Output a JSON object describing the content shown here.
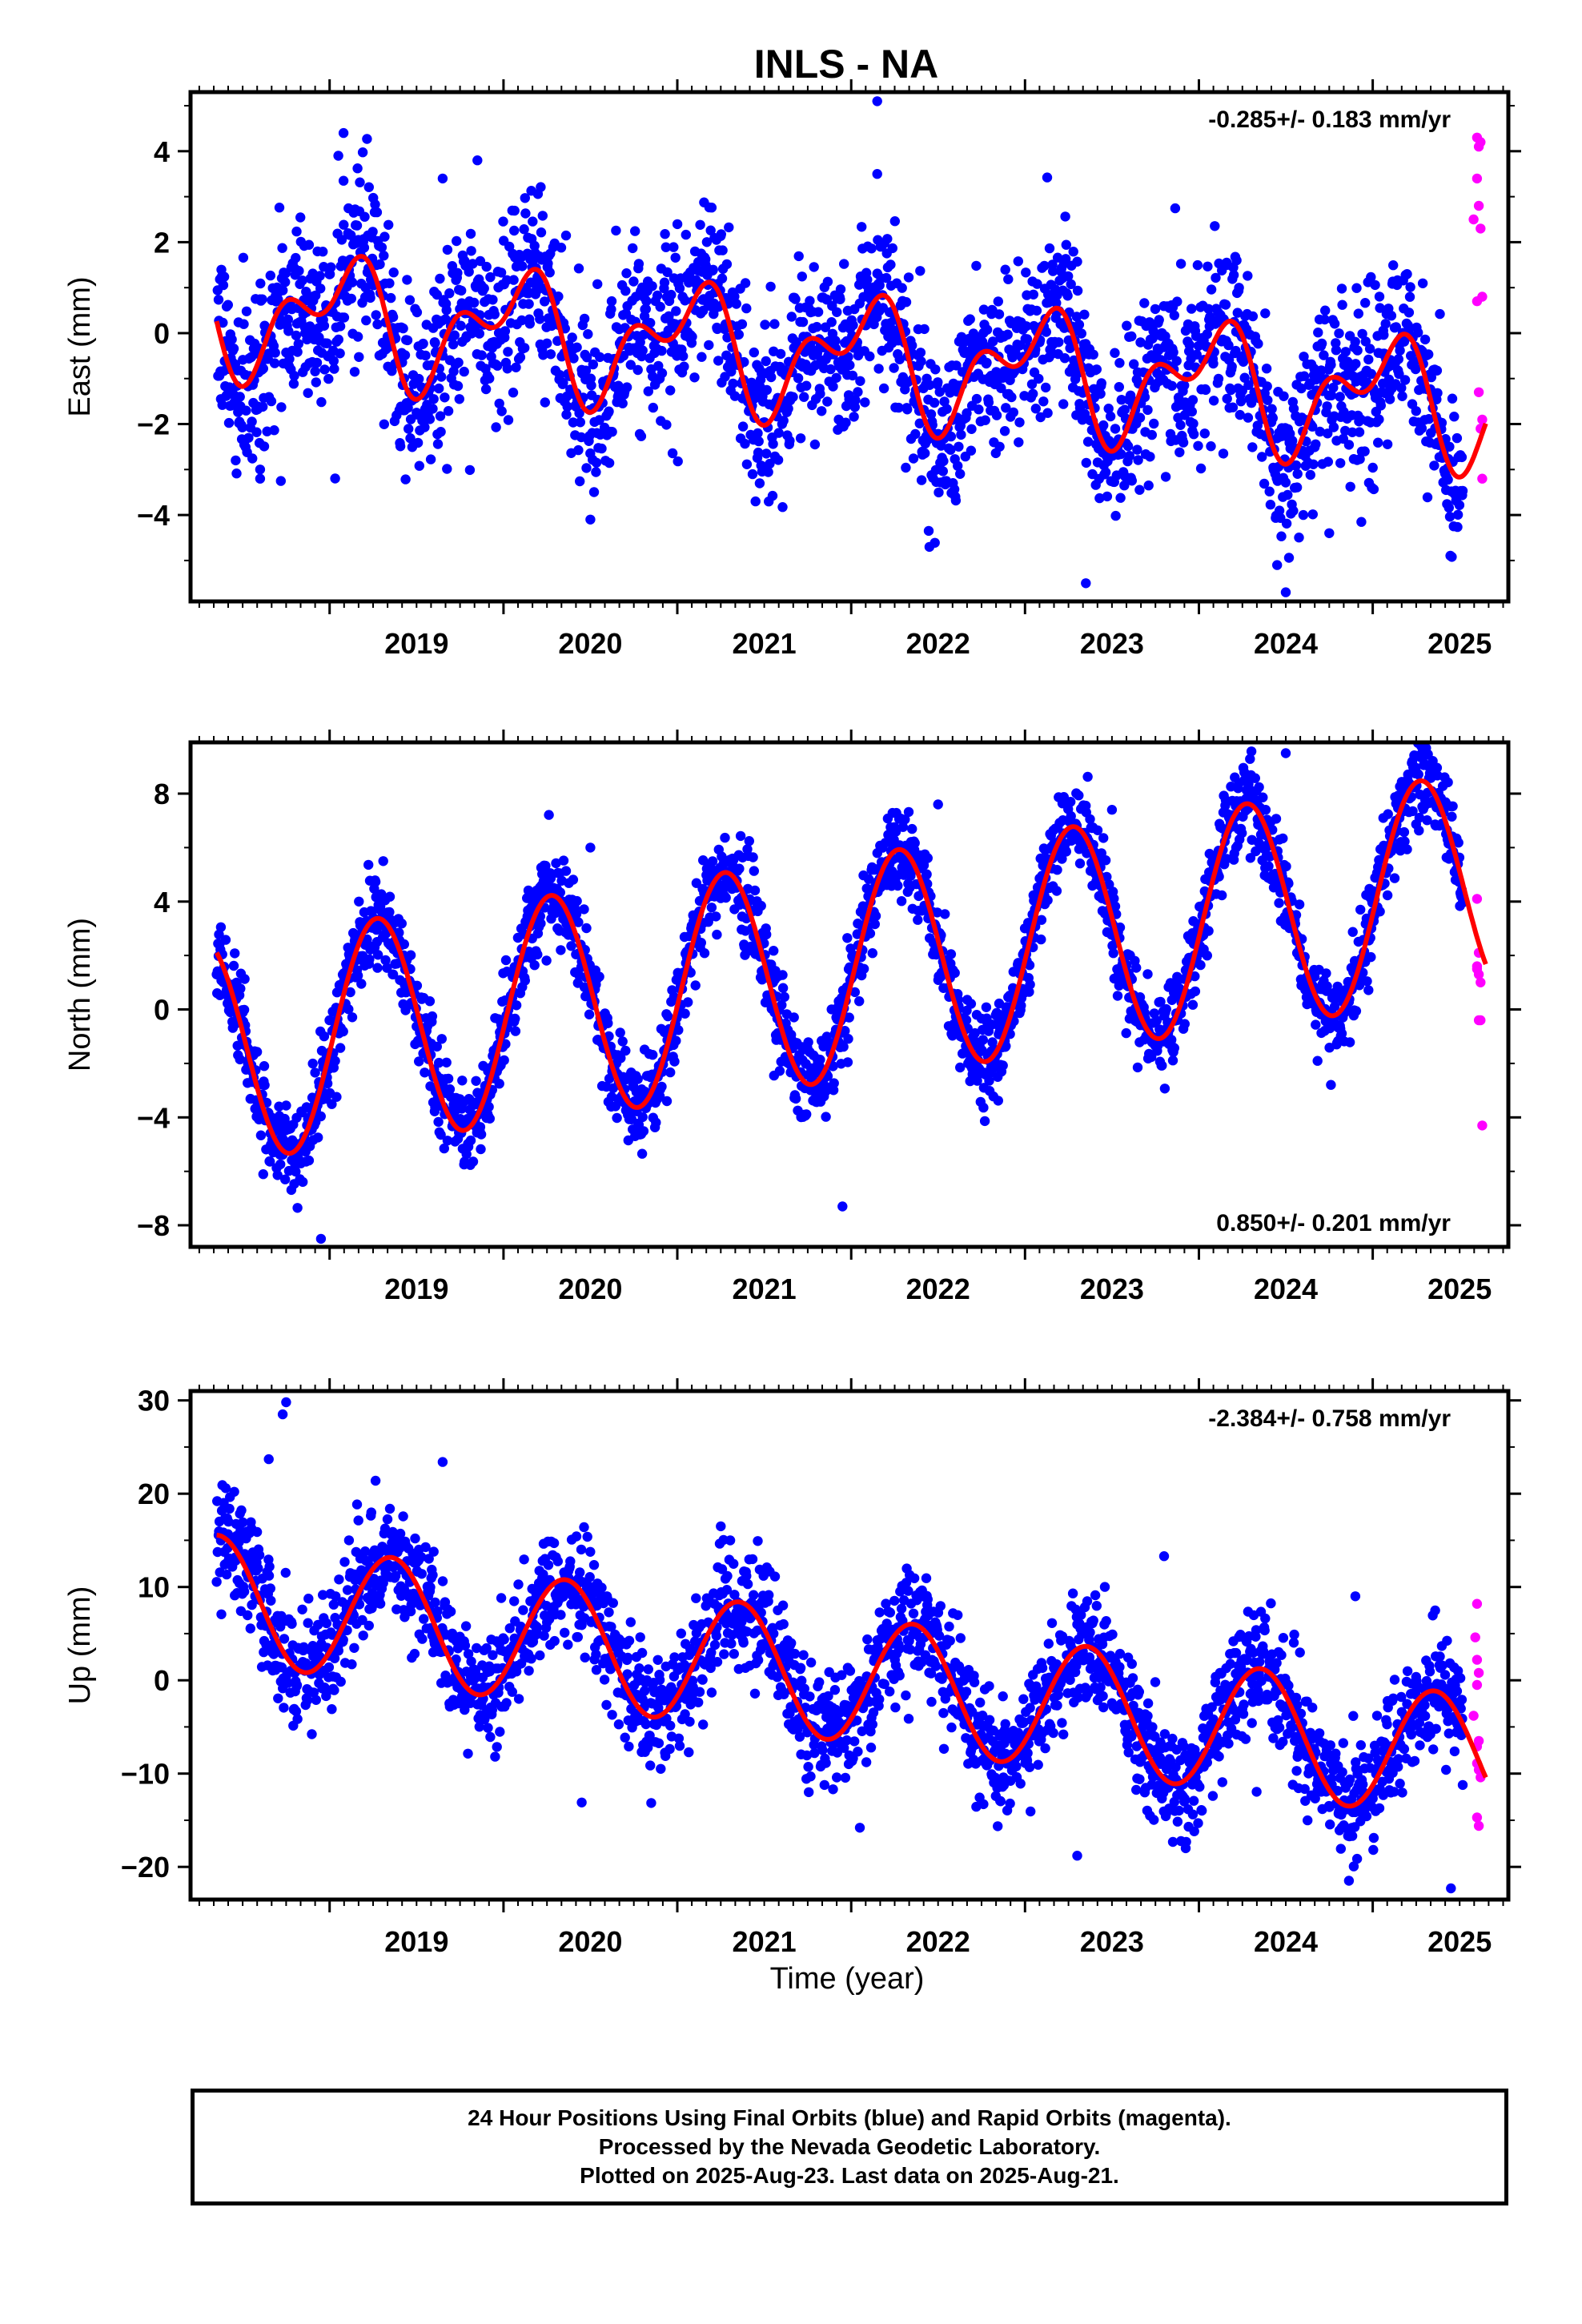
{
  "title": "INLS - NA",
  "xlabel": "Time (year)",
  "colors": {
    "final": "#0000ff",
    "rapid": "#ff00ff",
    "model": "#ff0000",
    "axis": "#000000"
  },
  "footer": {
    "line1": "24 Hour Positions Using Final Orbits (blue) and Rapid Orbits (magenta).",
    "line2": "Processed by the Nevada Geodetic Laboratory.",
    "line3": "Plotted on 2025-Aug-23. Last data on 2025-Aug-21."
  },
  "chart_data": [
    {
      "type": "scatter",
      "id": "east",
      "ylabel": "East (mm)",
      "rate_label": "-0.285+/- 0.183 mm/yr",
      "rate_position": "top-right",
      "xlim": [
        2018.2,
        2025.78
      ],
      "ylim": [
        -5.9,
        5.3
      ],
      "xticks": [
        2019,
        2020,
        2021,
        2022,
        2023,
        2024,
        2025
      ],
      "yticks": [
        -4,
        -2,
        0,
        2,
        4
      ],
      "ytick_labels": [
        "−4",
        "−2",
        "0",
        "2",
        "4"
      ],
      "series": [
        {
          "name": "Final Orbits",
          "kind": "points",
          "x_range": [
            2018.35,
            2025.52
          ],
          "scatter_sd": 0.95,
          "outliers": [
            [
              2019.08,
              4.4
            ],
            [
              2019.05,
              3.9
            ],
            [
              2019.08,
              3.35
            ],
            [
              2019.85,
              3.8
            ],
            [
              2019.65,
              3.4
            ],
            [
              2022.15,
              5.1
            ],
            [
              2022.15,
              3.5
            ],
            [
              2023.35,
              -5.5
            ],
            [
              2024.5,
              -5.7
            ],
            [
              2024.45,
              -5.1
            ],
            [
              2020.5,
              -4.1
            ],
            [
              2022.45,
              -4.7
            ],
            [
              2018.6,
              -3.0
            ],
            [
              2018.6,
              -3.2
            ],
            [
              2021.45,
              -3.7
            ],
            [
              2024.75,
              -4.4
            ]
          ]
        },
        {
          "name": "Rapid Orbits",
          "kind": "points",
          "points": [
            [
              2025.58,
              2.5
            ],
            [
              2025.6,
              4.3
            ],
            [
              2025.61,
              4.1
            ],
            [
              2025.62,
              4.2
            ],
            [
              2025.6,
              3.4
            ],
            [
              2025.61,
              2.8
            ],
            [
              2025.62,
              2.3
            ],
            [
              2025.6,
              0.7
            ],
            [
              2025.63,
              -1.9
            ],
            [
              2025.62,
              -2.1
            ],
            [
              2025.63,
              -3.2
            ],
            [
              2025.61,
              -1.3
            ],
            [
              2025.63,
              0.8
            ]
          ]
        },
        {
          "name": "Model",
          "kind": "line",
          "offset": 0.52,
          "rate": -0.285,
          "ref_year": 2018.35,
          "annual": {
            "c": 0.95,
            "s": 0.4
          },
          "semiannual": {
            "c": -0.7,
            "s": 0.25
          }
        }
      ]
    },
    {
      "type": "scatter",
      "id": "north",
      "ylabel": "North (mm)",
      "rate_label": "0.850+/- 0.201 mm/yr",
      "rate_position": "bottom-right",
      "xlim": [
        2018.2,
        2025.78
      ],
      "ylim": [
        -8.8,
        9.9
      ],
      "xticks": [
        2019,
        2020,
        2021,
        2022,
        2023,
        2024,
        2025
      ],
      "yticks": [
        -8,
        -4,
        0,
        4,
        8
      ],
      "ytick_labels": [
        "−8",
        "−4",
        "0",
        "4",
        "8"
      ],
      "series": [
        {
          "name": "Final Orbits",
          "kind": "points",
          "x_range": [
            2018.35,
            2025.52
          ],
          "scatter_sd": 0.85,
          "outliers": [
            [
              2024.5,
              9.5
            ],
            [
              2021.95,
              -7.3
            ],
            [
              2018.95,
              -8.5
            ],
            [
              2023.5,
              7.4
            ],
            [
              2022.5,
              7.6
            ],
            [
              2020.5,
              6.0
            ]
          ]
        },
        {
          "name": "Rapid Orbits",
          "kind": "points",
          "points": [
            [
              2025.6,
              4.1
            ],
            [
              2025.61,
              2.1
            ],
            [
              2025.6,
              1.5
            ],
            [
              2025.61,
              1.3
            ],
            [
              2025.62,
              1.0
            ],
            [
              2025.6,
              1.6
            ],
            [
              2025.61,
              -0.4
            ],
            [
              2025.62,
              -0.4
            ],
            [
              2025.63,
              -4.3
            ]
          ]
        },
        {
          "name": "Model",
          "kind": "line",
          "offset": -1.55,
          "rate": 0.85,
          "ref_year": 2018.35,
          "annual": {
            "c": -0.58,
            "s": 4.1
          },
          "semiannual": {
            "c": 0.0,
            "s": 0.0
          }
        }
      ]
    },
    {
      "type": "scatter",
      "id": "up",
      "ylabel": "Up (mm)",
      "rate_label": "-2.384+/- 0.758 mm/yr",
      "rate_position": "top-right",
      "xlim": [
        2018.2,
        2025.78
      ],
      "ylim": [
        -23.5,
        31.0
      ],
      "xticks": [
        2019,
        2020,
        2021,
        2022,
        2023,
        2024,
        2025
      ],
      "yticks": [
        -20,
        -10,
        0,
        10,
        20,
        30
      ],
      "ytick_labels": [
        "−20",
        "−10",
        "0",
        "10",
        "20",
        "30"
      ],
      "series": [
        {
          "name": "Final Orbits",
          "kind": "points",
          "x_range": [
            2018.35,
            2025.52
          ],
          "scatter_sd": 3.1,
          "outliers": [
            [
              2018.75,
              29.8
            ],
            [
              2018.73,
              28.5
            ],
            [
              2018.65,
              23.7
            ],
            [
              2019.65,
              23.4
            ],
            [
              2025.45,
              -22.3
            ],
            [
              2023.3,
              -18.8
            ],
            [
              2022.05,
              -15.8
            ],
            [
              2020.45,
              -13.1
            ],
            [
              2023.8,
              13.3
            ],
            [
              2024.9,
              9.0
            ],
            [
              2021.25,
              16.5
            ]
          ]
        },
        {
          "name": "Rapid Orbits",
          "kind": "points",
          "points": [
            [
              2025.6,
              8.2
            ],
            [
              2025.59,
              4.6
            ],
            [
              2025.6,
              2.2
            ],
            [
              2025.61,
              0.8
            ],
            [
              2025.6,
              -0.5
            ],
            [
              2025.58,
              -3.8
            ],
            [
              2025.61,
              -6.5
            ],
            [
              2025.6,
              -7.1
            ],
            [
              2025.6,
              -8.9
            ],
            [
              2025.61,
              -9.6
            ],
            [
              2025.62,
              -10.4
            ],
            [
              2025.6,
              -14.7
            ],
            [
              2025.61,
              -15.6
            ]
          ]
        },
        {
          "name": "Model",
          "kind": "line",
          "offset": 8.8,
          "rate": -2.384,
          "ref_year": 2018.35,
          "annual": {
            "c": -4.2,
            "s": 5.3
          },
          "semiannual": {
            "c": 0.0,
            "s": 0.0
          }
        }
      ]
    }
  ]
}
